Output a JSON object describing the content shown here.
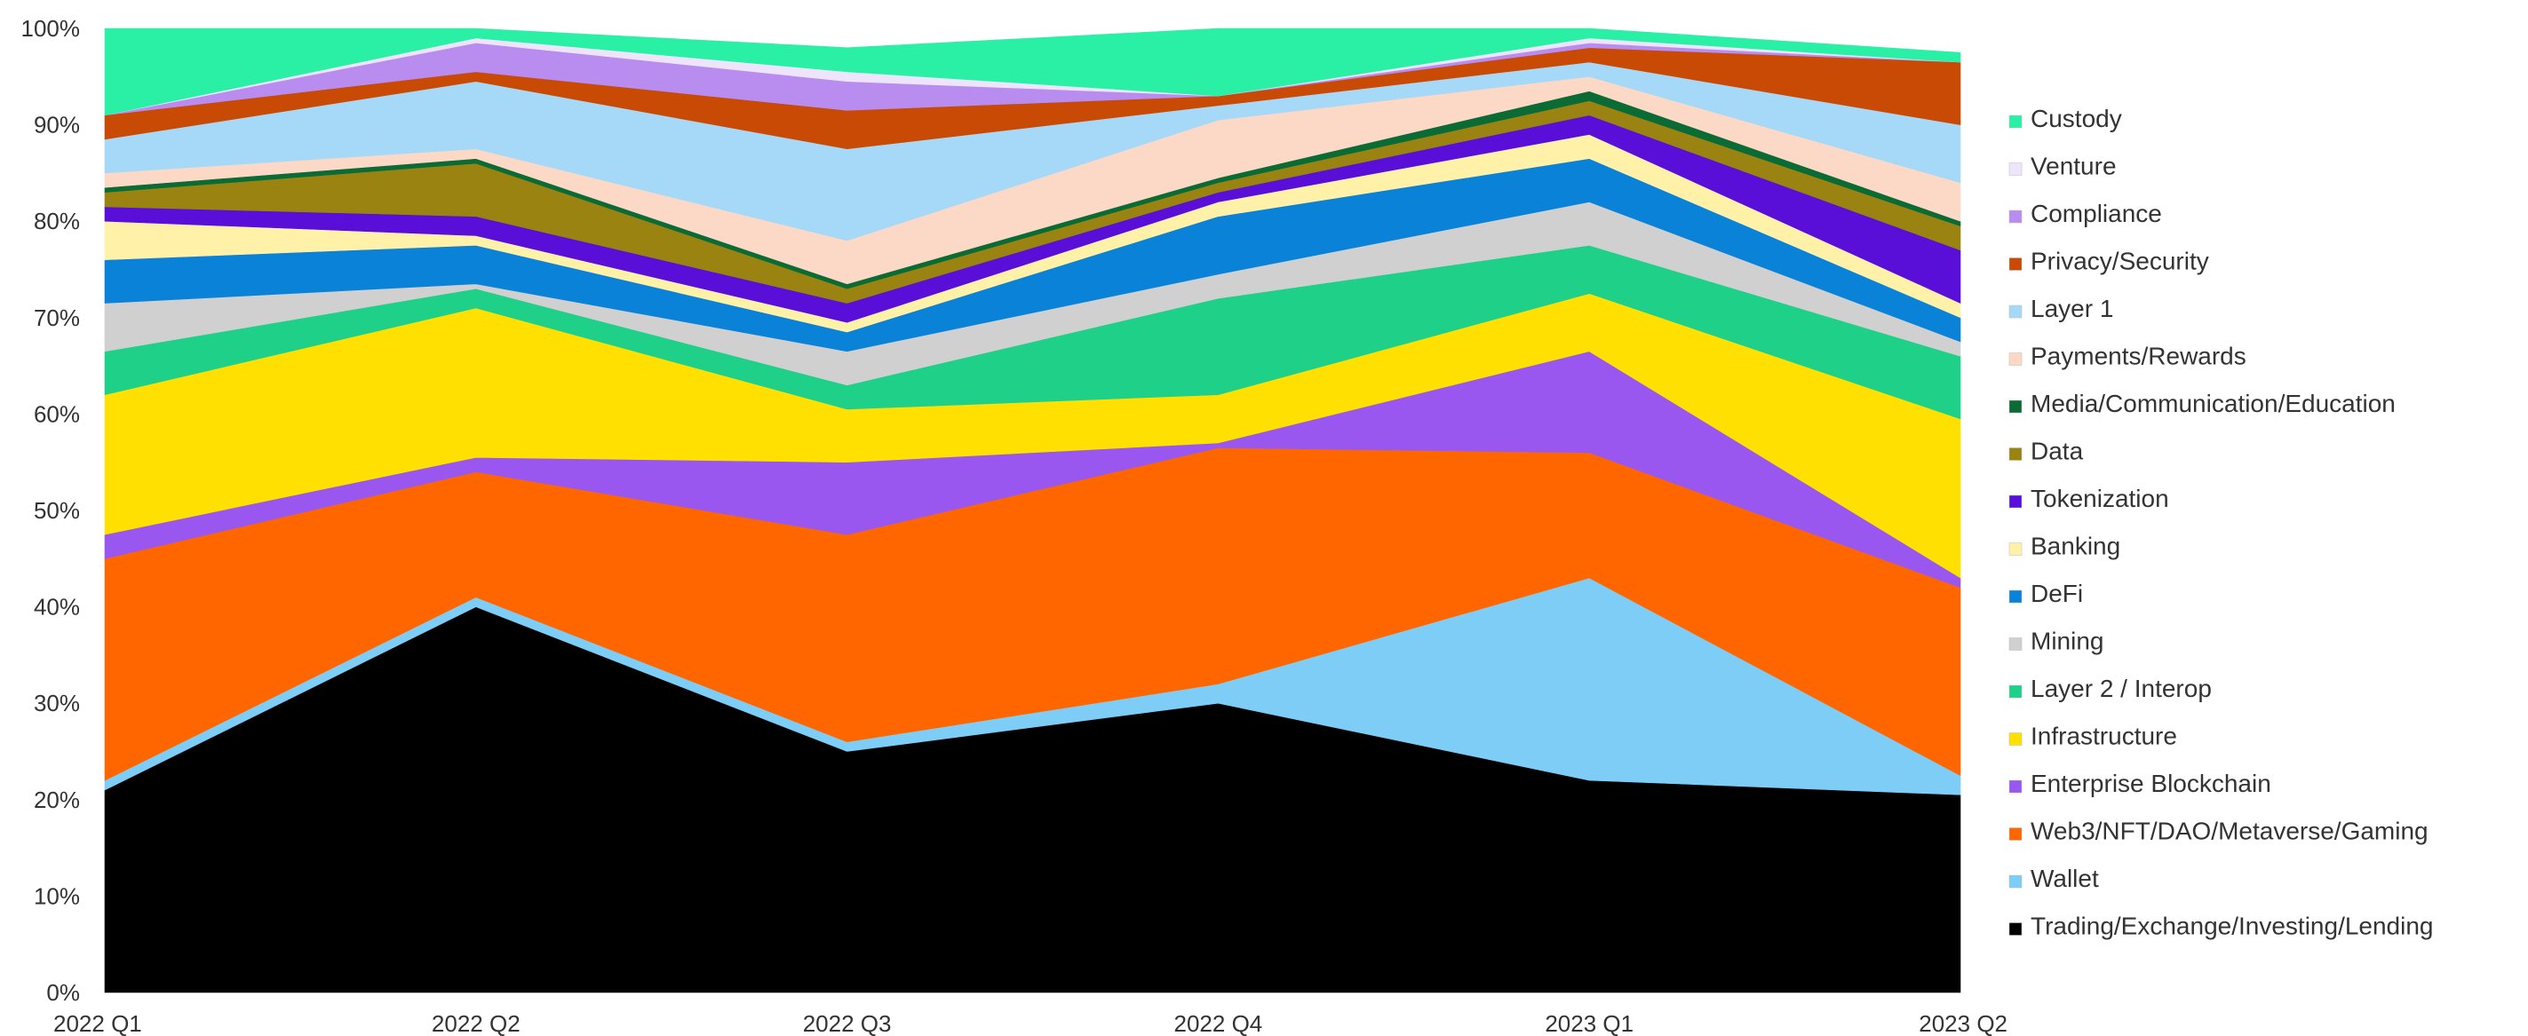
{
  "chart_data": {
    "type": "area",
    "stacked": true,
    "normalized": true,
    "categories": [
      "2022 Q1",
      "2022 Q2",
      "2022 Q3",
      "2022 Q4",
      "2023 Q1",
      "2023 Q2"
    ],
    "y_ticks": [
      "0%",
      "10%",
      "20%",
      "30%",
      "40%",
      "50%",
      "60%",
      "70%",
      "80%",
      "90%",
      "100%"
    ],
    "ylim": [
      0,
      100
    ],
    "grid": false,
    "legend_position": "right",
    "series": [
      {
        "name": "Trading/Exchange/Investing/Lending",
        "color": "#000000",
        "values": [
          21.0,
          40.0,
          25.0,
          30.0,
          22.0,
          20.5
        ]
      },
      {
        "name": "Wallet",
        "color": "#7dcdf7",
        "values": [
          1.0,
          1.0,
          1.0,
          2.0,
          21.0,
          2.0
        ]
      },
      {
        "name": "Web3/NFT/DAO/Metaverse/Gaming",
        "color": "#ff6600",
        "values": [
          23.0,
          13.0,
          21.5,
          24.5,
          13.0,
          19.5
        ]
      },
      {
        "name": "Enterprise Blockchain",
        "color": "#9a57f0",
        "values": [
          2.5,
          1.5,
          7.5,
          0.5,
          10.5,
          1.0
        ]
      },
      {
        "name": "Infrastructure",
        "color": "#ffe000",
        "values": [
          14.5,
          15.5,
          5.5,
          5.0,
          6.0,
          16.5
        ]
      },
      {
        "name": "Layer 2 / Interop",
        "color": "#1fd089",
        "values": [
          4.5,
          2.0,
          2.5,
          10.0,
          5.0,
          6.5
        ]
      },
      {
        "name": "Mining",
        "color": "#d0d0d0",
        "values": [
          5.0,
          0.5,
          3.5,
          2.5,
          4.5,
          1.5
        ]
      },
      {
        "name": "DeFi",
        "color": "#0a82d8",
        "values": [
          4.5,
          4.0,
          2.0,
          6.0,
          4.5,
          2.5
        ]
      },
      {
        "name": "Banking",
        "color": "#fff2a8",
        "values": [
          4.0,
          1.0,
          1.0,
          1.5,
          2.5,
          1.5
        ]
      },
      {
        "name": "Tokenization",
        "color": "#5a0fd8",
        "values": [
          1.5,
          2.0,
          2.0,
          1.0,
          2.0,
          5.5
        ]
      },
      {
        "name": "Data",
        "color": "#9a8310",
        "values": [
          1.5,
          5.5,
          1.5,
          1.0,
          1.5,
          2.5
        ]
      },
      {
        "name": "Media/Communication/Education",
        "color": "#0b6b35",
        "values": [
          0.5,
          0.5,
          0.5,
          0.5,
          1.0,
          0.5
        ]
      },
      {
        "name": "Payments/Rewards",
        "color": "#fcd9c6",
        "values": [
          1.5,
          1.0,
          4.5,
          6.0,
          1.5,
          4.0
        ]
      },
      {
        "name": "Layer 1",
        "color": "#a6d8f7",
        "values": [
          3.5,
          7.0,
          9.5,
          1.5,
          1.5,
          6.0
        ]
      },
      {
        "name": "Privacy/Security",
        "color": "#c94a05",
        "values": [
          2.5,
          1.0,
          4.0,
          1.0,
          1.5,
          6.5
        ]
      },
      {
        "name": "Compliance",
        "color": "#b98cf0",
        "values": [
          0.0,
          3.0,
          3.0,
          0.0,
          0.5,
          0.0
        ]
      },
      {
        "name": "Venture",
        "color": "#eee4fb",
        "values": [
          0.0,
          0.5,
          1.0,
          0.0,
          0.5,
          0.0
        ]
      },
      {
        "name": "Custody",
        "color": "#2af0a6",
        "values": [
          9.0,
          1.0,
          2.5,
          7.0,
          1.0,
          1.0
        ]
      }
    ]
  }
}
